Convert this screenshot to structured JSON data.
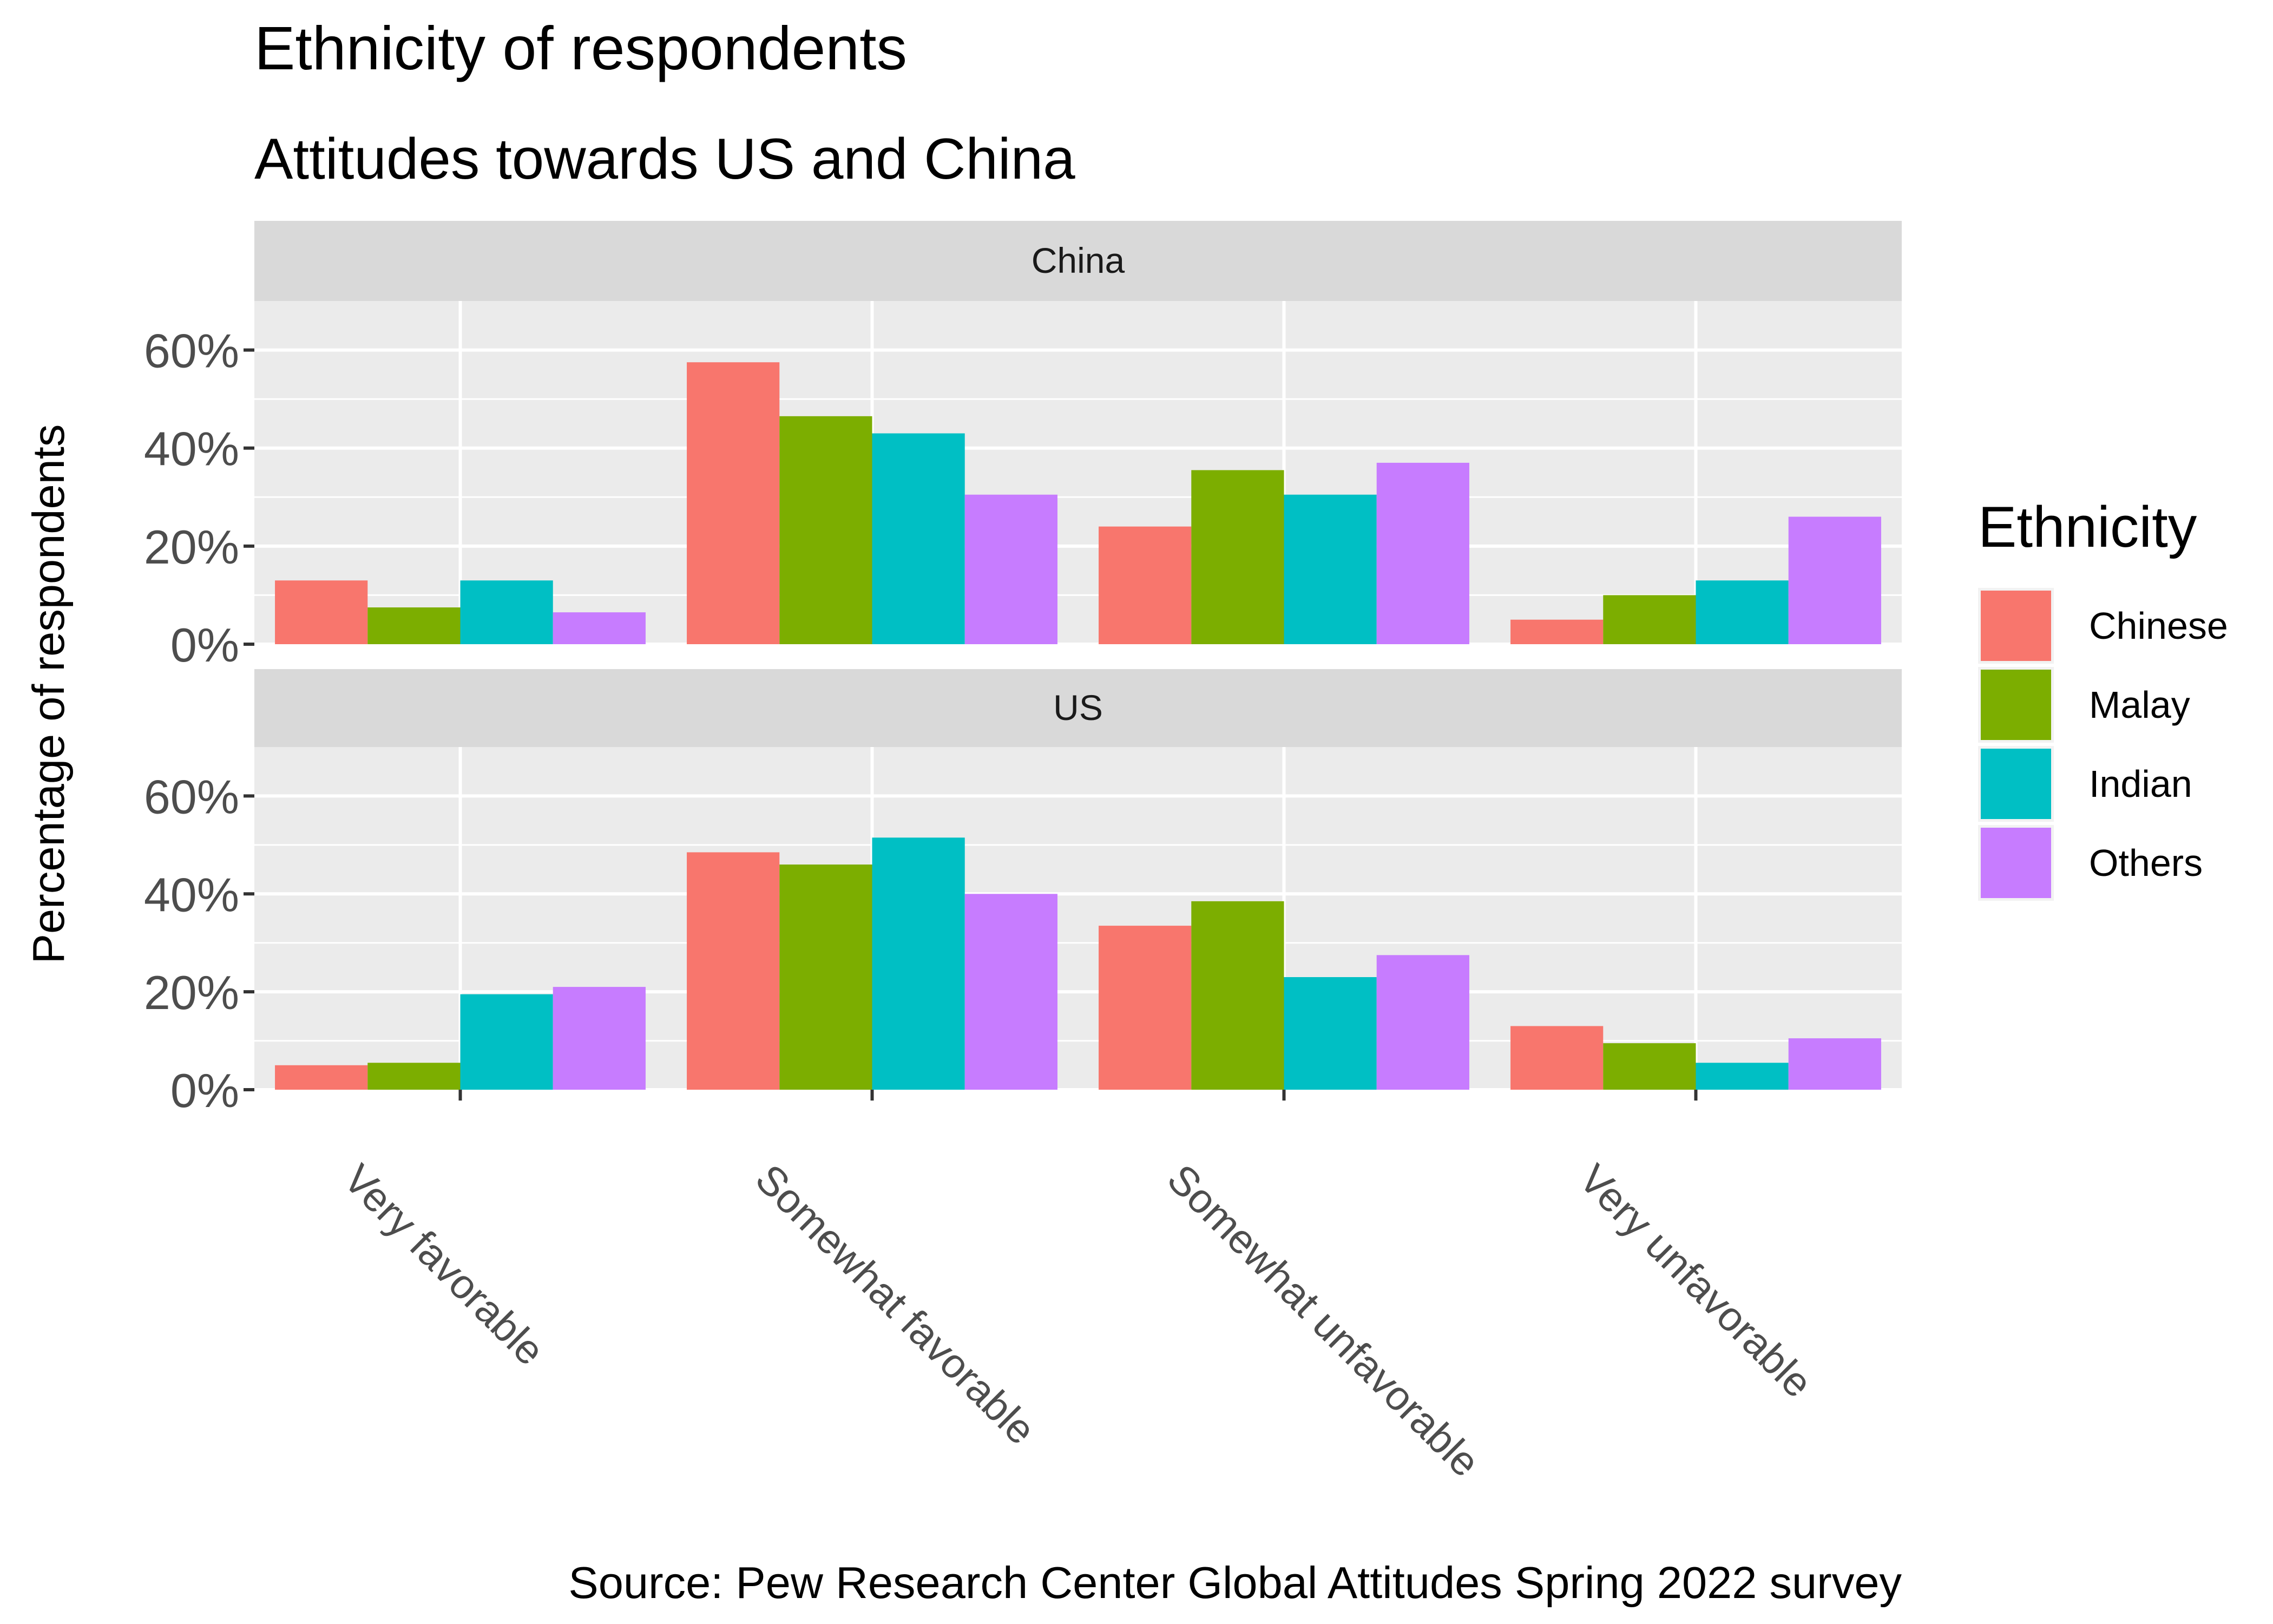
{
  "chart_data": {
    "type": "bar",
    "title": "Ethnicity of respondents",
    "subtitle": "Attitudes towards US and China",
    "ylabel": "Percentage of respondents",
    "caption": "Source: Pew Research Center Global Attitudes Spring 2022 survey",
    "categories": [
      "Very favorable",
      "Somewhat favorable",
      "Somewhat unfavorable",
      "Very unfavorable"
    ],
    "y_ticks": [
      "0%",
      "20%",
      "40%",
      "60%"
    ],
    "ylim": [
      0,
      0.7
    ],
    "grid": true,
    "legend": {
      "title": "Ethnicity",
      "position": "right",
      "entries": [
        "Chinese",
        "Malay",
        "Indian",
        "Others"
      ]
    },
    "series_colors": {
      "Chinese": "#F8766D",
      "Malay": "#7CAE00",
      "Indian": "#00BFC4",
      "Others": "#C77CFF"
    },
    "panels": [
      {
        "strip": "China",
        "series": [
          {
            "name": "Chinese",
            "values": [
              0.13,
              0.575,
              0.24,
              0.05
            ]
          },
          {
            "name": "Malay",
            "values": [
              0.075,
              0.465,
              0.355,
              0.1
            ]
          },
          {
            "name": "Indian",
            "values": [
              0.13,
              0.43,
              0.305,
              0.13
            ]
          },
          {
            "name": "Others",
            "values": [
              0.065,
              0.305,
              0.37,
              0.26
            ]
          }
        ]
      },
      {
        "strip": "US",
        "series": [
          {
            "name": "Chinese",
            "values": [
              0.05,
              0.485,
              0.335,
              0.13
            ]
          },
          {
            "name": "Malay",
            "values": [
              0.055,
              0.46,
              0.385,
              0.095
            ]
          },
          {
            "name": "Indian",
            "values": [
              0.195,
              0.515,
              0.23,
              0.055
            ]
          },
          {
            "name": "Others",
            "values": [
              0.21,
              0.4,
              0.275,
              0.105
            ]
          }
        ]
      }
    ]
  }
}
